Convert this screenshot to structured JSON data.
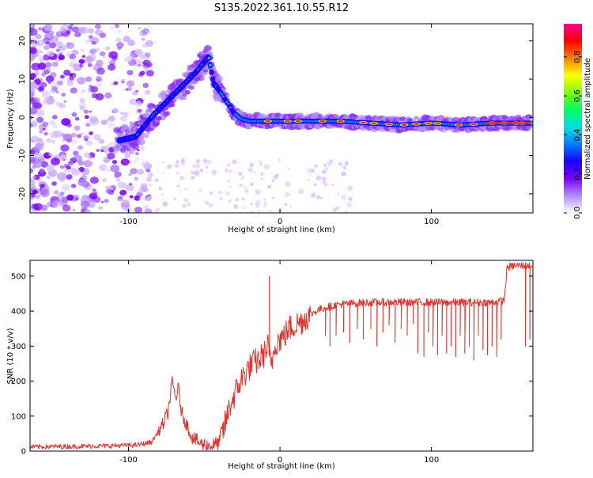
{
  "title": "S135.2022.361.10.55.R12",
  "chart_data": [
    {
      "type": "heatmap",
      "xlabel": "Height of straight line (km)",
      "ylabel": "Frequency (Hz)",
      "xlim": [
        -165,
        167
      ],
      "ylim": [
        -25,
        24.5
      ],
      "xticks": [
        -100,
        0,
        100
      ],
      "yticks": [
        -20,
        -10,
        0,
        10,
        20
      ],
      "colorbar": {
        "label": "Normalized spectral amplitude",
        "range": [
          0,
          0.97
        ],
        "ticks": [
          0.0,
          0.2,
          0.4,
          0.6,
          0.8
        ],
        "colors": [
          "#ffffff",
          "#b08cff",
          "#7b00ff",
          "#1a00ff",
          "#0080ff",
          "#00e0e0",
          "#00ff60",
          "#80ff00",
          "#ffff00",
          "#ff8000",
          "#ff0000",
          "#ff0090"
        ]
      },
      "ridge": {
        "x": [
          -105,
          -95,
          -85,
          -75,
          -65,
          -55,
          -47,
          -44,
          -40,
          -35,
          -30,
          -25,
          -20,
          -10,
          0,
          20,
          40,
          60,
          80,
          100,
          120,
          140,
          165
        ],
        "frequency": [
          -6,
          -5,
          0,
          4,
          8,
          12,
          16,
          9,
          7,
          4,
          1,
          -0.5,
          -1,
          -1,
          -1,
          -1,
          -1,
          -1.5,
          -2,
          -1.5,
          -2,
          -1.5,
          -1.5
        ]
      }
    },
    {
      "type": "line",
      "xlabel": "Height of straight line (km)",
      "ylabel": "SNR (10 * v/v)",
      "xlim": [
        -165,
        167
      ],
      "ylim": [
        0,
        545
      ],
      "xticks": [
        -100,
        0,
        100
      ],
      "yticks": [
        0,
        100,
        200,
        300,
        400,
        500
      ],
      "color": "#e8302a",
      "series": [
        {
          "x": [
            -165,
            -140,
            -115,
            -95,
            -85,
            -78,
            -74,
            -71,
            -69,
            -67,
            -65,
            -62,
            -58,
            -52,
            -45,
            -40,
            -36,
            -33,
            -30,
            -26,
            -22,
            -18,
            -14,
            -10,
            -8,
            -6,
            -3,
            0,
            3,
            6,
            10,
            14,
            18,
            22,
            26,
            30,
            40,
            60,
            80,
            100,
            120,
            140,
            148,
            150,
            155,
            160,
            167
          ],
          "values": [
            12,
            13,
            15,
            17,
            25,
            70,
            110,
            200,
            150,
            180,
            110,
            80,
            40,
            20,
            15,
            25,
            80,
            130,
            160,
            200,
            230,
            250,
            260,
            280,
            300,
            240,
            310,
            320,
            330,
            350,
            360,
            370,
            385,
            395,
            405,
            410,
            420,
            425,
            425,
            425,
            425,
            425,
            430,
            525,
            530,
            530,
            530
          ]
        }
      ],
      "spikes_down": [
        {
          "x": 30,
          "value": 330
        },
        {
          "x": 33,
          "value": 300
        },
        {
          "x": 37,
          "value": 330
        },
        {
          "x": 42,
          "value": 340
        },
        {
          "x": 46,
          "value": 310
        },
        {
          "x": 51,
          "value": 350
        },
        {
          "x": 55,
          "value": 320
        },
        {
          "x": 60,
          "value": 350
        },
        {
          "x": 64,
          "value": 300
        },
        {
          "x": 68,
          "value": 340
        },
        {
          "x": 72,
          "value": 360
        },
        {
          "x": 76,
          "value": 310
        },
        {
          "x": 80,
          "value": 350
        },
        {
          "x": 84,
          "value": 330
        },
        {
          "x": 88,
          "value": 365
        },
        {
          "x": 91,
          "value": 280
        },
        {
          "x": 95,
          "value": 270
        },
        {
          "x": 98,
          "value": 340
        },
        {
          "x": 101,
          "value": 300
        },
        {
          "x": 104,
          "value": 275
        },
        {
          "x": 107,
          "value": 330
        },
        {
          "x": 110,
          "value": 280
        },
        {
          "x": 113,
          "value": 300
        },
        {
          "x": 116,
          "value": 270
        },
        {
          "x": 119,
          "value": 330
        },
        {
          "x": 122,
          "value": 280
        },
        {
          "x": 125,
          "value": 300
        },
        {
          "x": 128,
          "value": 260
        },
        {
          "x": 131,
          "value": 330
        },
        {
          "x": 134,
          "value": 290
        },
        {
          "x": 137,
          "value": 275
        },
        {
          "x": 140,
          "value": 300
        },
        {
          "x": 143,
          "value": 270
        },
        {
          "x": 146,
          "value": 320
        },
        {
          "x": 162,
          "value": 300
        },
        {
          "x": 165,
          "value": 320
        }
      ],
      "spikes_up": [
        {
          "x": -7,
          "value": 500
        }
      ]
    }
  ]
}
